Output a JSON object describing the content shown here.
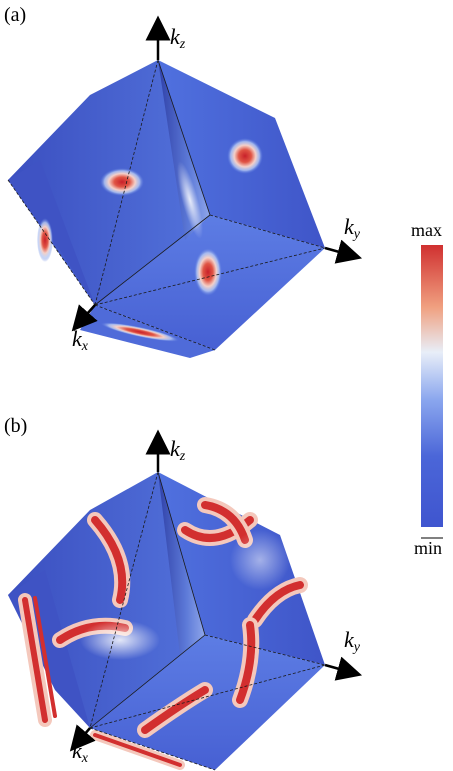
{
  "panels": [
    {
      "label": "(a)",
      "axes": {
        "z": "k",
        "y": "k",
        "x": "k"
      },
      "axis_subscripts": {
        "z": "z",
        "y": "y",
        "x": "x"
      }
    },
    {
      "label": "(b)",
      "axes": {
        "z": "k",
        "y": "k",
        "x": "k"
      },
      "axis_subscripts": {
        "z": "z",
        "y": "y",
        "x": "x"
      }
    }
  ],
  "colorbar": {
    "max_label": "max",
    "min_label": "min",
    "colors": [
      "#d03030",
      "#f0a080",
      "#e8eef8",
      "#6f92e6",
      "#4b66d8",
      "#3f55cf"
    ]
  },
  "colors": {
    "base_blue": "#4a63d6",
    "hot_red": "#d22f2f",
    "face_dark": "#3f53c4",
    "face_light": "#5a7ae0"
  }
}
